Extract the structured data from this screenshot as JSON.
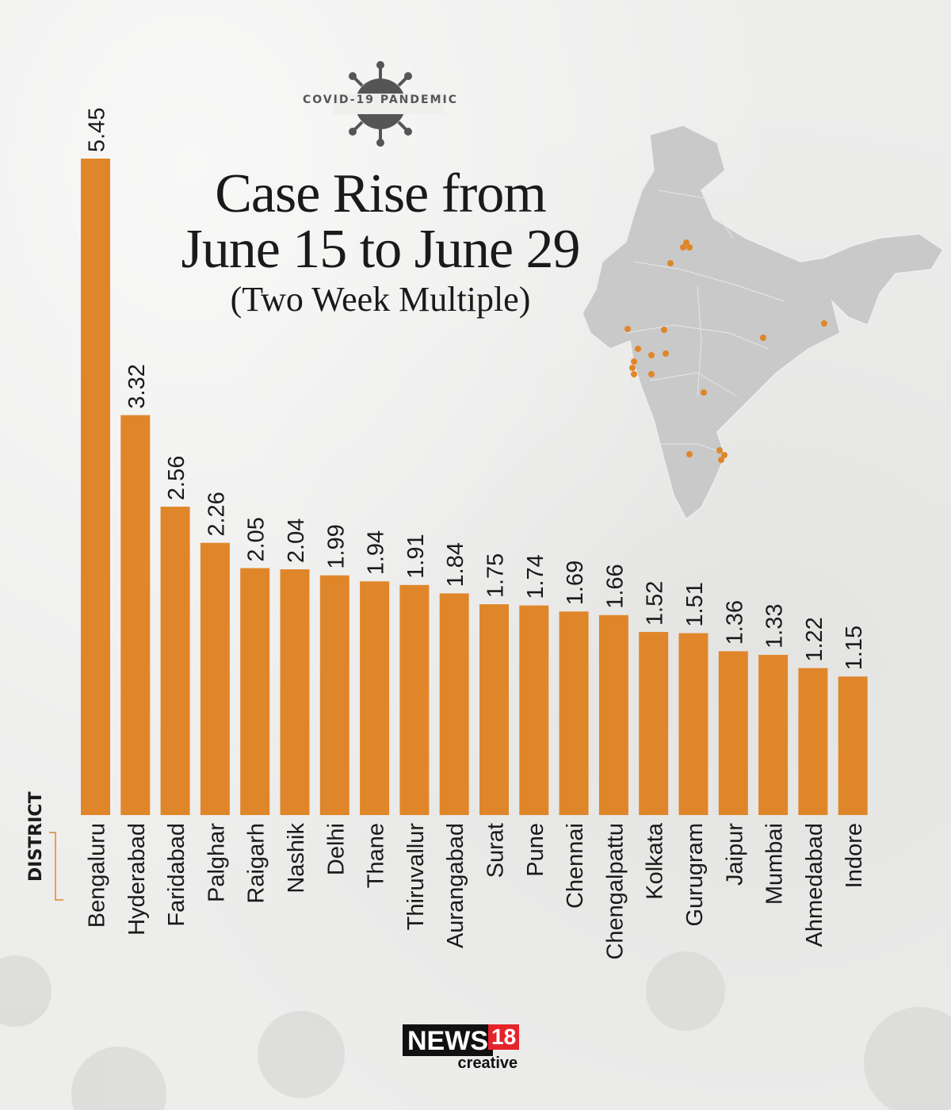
{
  "header": {
    "kicker": "COVID-19 PANDEMIC",
    "title_line1": "Case Rise from",
    "title_line2": "June 15 to June 29",
    "subtitle": "(Two Week Multiple)"
  },
  "axis": {
    "x_title": "DISTRICT"
  },
  "brand": {
    "name": "NEWS",
    "number": "18",
    "tagline": "creative"
  },
  "colors": {
    "bar": "#e0862a",
    "map": "#c9c9c9",
    "dot": "#e0862a",
    "text": "#1a1a1a"
  },
  "icons": [
    "virus-icon",
    "india-map-icon"
  ],
  "chart_data": {
    "type": "bar",
    "title": "Case Rise from June 15 to June 29",
    "subtitle": "(Two Week Multiple)",
    "xlabel": "DISTRICT",
    "ylabel": "",
    "ylim": [
      0,
      5.45
    ],
    "grid": false,
    "categories": [
      "Bengaluru",
      "Hyderabad",
      "Faridabad",
      "Palghar",
      "Raigarh",
      "Nashik",
      "Delhi",
      "Thane",
      "Thiruvallur",
      "Aurangabad",
      "Surat",
      "Pune",
      "Chennai",
      "Chengalpattu",
      "Kolkata",
      "Gurugram",
      "Jaipur",
      "Mumbai",
      "Ahmedabad",
      "Indore"
    ],
    "values": [
      5.45,
      3.32,
      2.56,
      2.26,
      2.05,
      2.04,
      1.99,
      1.94,
      1.91,
      1.84,
      1.75,
      1.74,
      1.69,
      1.66,
      1.52,
      1.51,
      1.36,
      1.33,
      1.22,
      1.15
    ],
    "value_labels": [
      "5.45",
      "3.32",
      "2.56",
      "2.26",
      "2.05",
      "2.04",
      "1.99",
      "1.94",
      "1.91",
      "1.84",
      "1.75",
      "1.74",
      "1.69",
      "1.66",
      "1.52",
      "1.51",
      "1.36",
      "1.33",
      "1.22",
      "1.15"
    ]
  }
}
